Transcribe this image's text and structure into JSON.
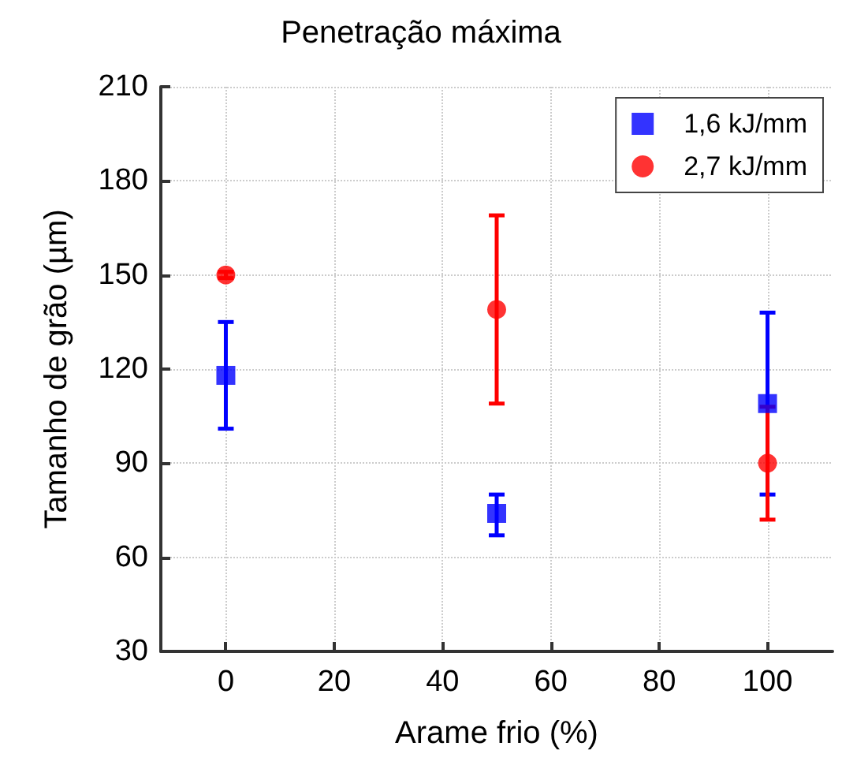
{
  "chart_data": {
    "type": "scatter",
    "title": "Penetração máxima",
    "xlabel": "Arame frio (%)",
    "ylabel": "Tamanho de grão (µm)",
    "x": [
      0,
      50,
      100
    ],
    "series": [
      {
        "name": "1,6 kJ/mm",
        "color": "#0000ff",
        "marker": "square",
        "values": [
          118,
          74,
          109
        ],
        "errors": [
          [
            101,
            135
          ],
          [
            67,
            80
          ],
          [
            80,
            138
          ]
        ]
      },
      {
        "name": "2,7 kJ/mm",
        "color": "#ff0000",
        "marker": "circle",
        "values": [
          150,
          139,
          90
        ],
        "errors": [
          [
            149,
            151
          ],
          [
            109,
            169
          ],
          [
            72,
            108
          ]
        ]
      }
    ],
    "xlim": [
      -12,
      112
    ],
    "xticks": [
      0,
      20,
      40,
      60,
      80,
      100
    ],
    "ylim": [
      30,
      210
    ],
    "yticks": [
      30,
      60,
      90,
      120,
      150,
      180,
      210
    ],
    "grid": true,
    "legend": "top right"
  }
}
